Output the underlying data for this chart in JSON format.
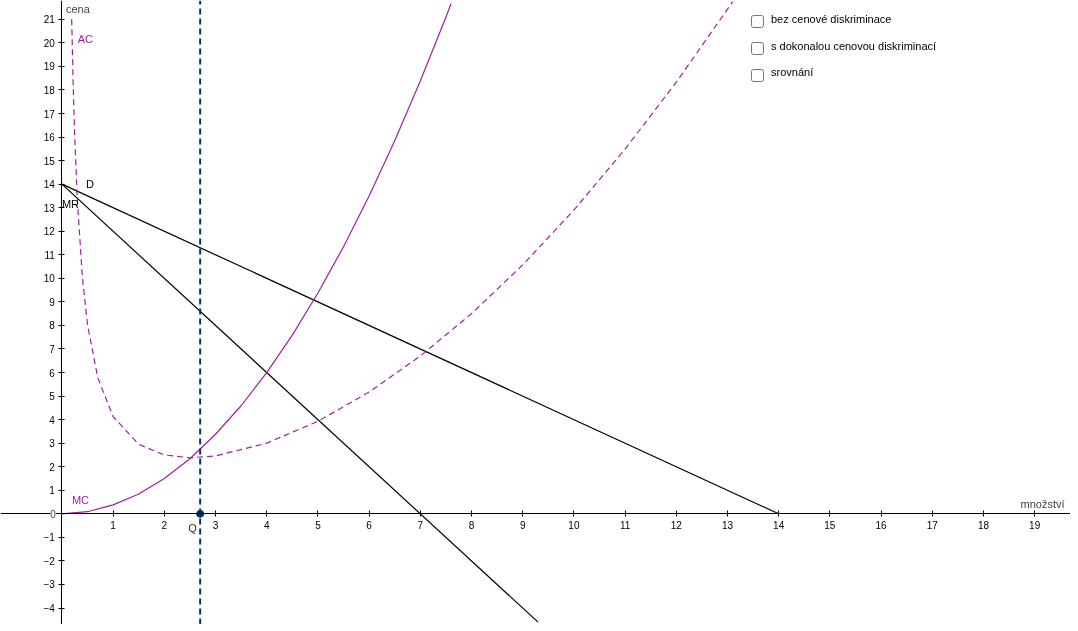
{
  "chart_data": {
    "type": "line",
    "xlabel": "množství",
    "ylabel": "cena",
    "xlim": [
      -1.2,
      19.7
    ],
    "ylim": [
      -4.7,
      21.8
    ],
    "xticks": [
      1,
      2,
      3,
      4,
      5,
      6,
      7,
      8,
      9,
      10,
      11,
      12,
      13,
      14,
      15,
      16,
      17,
      18,
      19
    ],
    "yticks": [
      {
        "value": -4,
        "label": "−4"
      },
      {
        "value": -3,
        "label": "−3"
      },
      {
        "value": -2,
        "label": "−2"
      },
      {
        "value": -1,
        "label": "−1"
      },
      0,
      1,
      2,
      3,
      4,
      5,
      6,
      7,
      8,
      9,
      10,
      11,
      12,
      13,
      14,
      15,
      16,
      17,
      18,
      19,
      20,
      21
    ],
    "grid": false,
    "legend": false,
    "marker": "none",
    "series": [
      {
        "name": "D",
        "color": "#000000",
        "line_style": "solid",
        "x": [
          0,
          14
        ],
        "values": [
          14,
          0
        ]
      },
      {
        "name": "MR",
        "color": "#000000",
        "line_style": "solid",
        "x": [
          0,
          9.3
        ],
        "values": [
          14,
          -4.6
        ]
      },
      {
        "name": "MC",
        "color": "#a020a0",
        "line_style": "solid",
        "x": [
          0,
          0.5,
          1,
          1.5,
          2,
          2.5,
          3,
          3.5,
          4,
          4.5,
          5,
          5.5,
          6,
          6.5,
          7,
          7.5,
          7.6
        ],
        "values": [
          0,
          0.09,
          0.38,
          0.84,
          1.5,
          2.34,
          3.38,
          4.59,
          6,
          7.59,
          9.38,
          11.34,
          13.5,
          15.84,
          18.38,
          21.09,
          21.66
        ]
      },
      {
        "name": "AC",
        "color": "#a020a0",
        "line_style": "dashed",
        "x": [
          0.19,
          0.22,
          0.25,
          0.3,
          0.4,
          0.5,
          0.7,
          1,
          1.5,
          2,
          2.5,
          3,
          4,
          5,
          6,
          7,
          8,
          9,
          10,
          11,
          12,
          13,
          13.1
        ],
        "values": [
          21.0,
          18.19,
          16.0,
          13.35,
          10.02,
          8.03,
          5.78,
          4.13,
          2.95,
          2.5,
          2.38,
          2.46,
          3,
          3.93,
          5.17,
          6.7,
          8.5,
          10.57,
          12.9,
          15.49,
          18.33,
          21.43,
          21.75
        ]
      },
      {
        "type": "scatter",
        "color": "#003366",
        "marker": "circle",
        "x": [
          2.7
        ],
        "values": [
          0
        ]
      }
    ],
    "ref_lines": [
      {
        "axis": "x",
        "value": 2.7,
        "label": "Q",
        "color": "#003366",
        "line_style": "dashed"
      }
    ],
    "annotations": [
      "bez cenové diskriminace",
      "s dokonalou cenovou diskriminací",
      "srovnání"
    ]
  }
}
